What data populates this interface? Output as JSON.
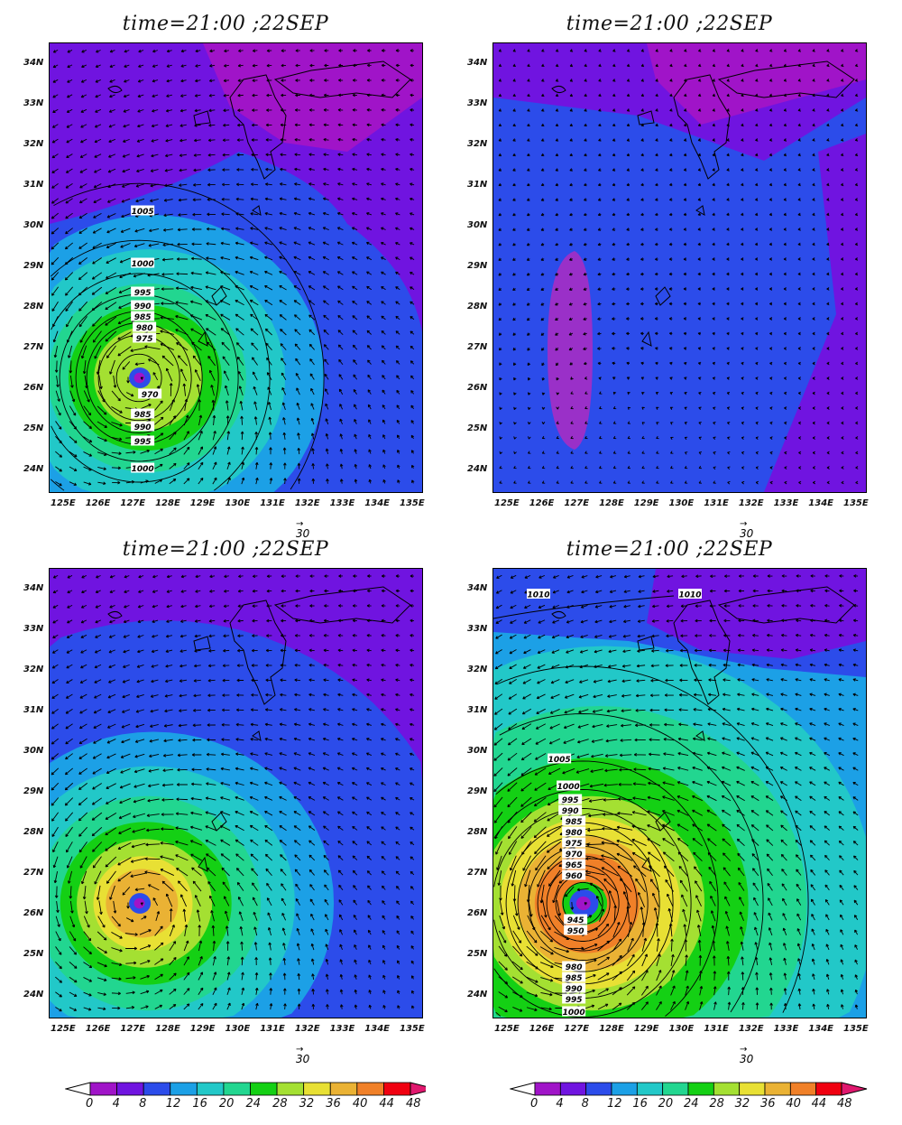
{
  "panels": [
    {
      "title": "time=21:00  ;22SEP",
      "ref_vector": "30",
      "contour_labels": [
        "1005",
        "1000",
        "995",
        "990",
        "985",
        "980",
        "975",
        "970",
        "985",
        "990",
        "995",
        "1000"
      ]
    },
    {
      "title": "time=21:00  ;22SEP",
      "ref_vector": "30",
      "contour_labels": []
    },
    {
      "title": "time=21:00  ;22SEP",
      "ref_vector": "30",
      "contour_labels": []
    },
    {
      "title": "time=21:00  ;22SEP",
      "ref_vector": "30",
      "contour_labels": [
        "1010",
        "1010",
        "1005",
        "1000",
        "995",
        "990",
        "985",
        "980",
        "975",
        "970",
        "965",
        "960",
        "945",
        "950",
        "980",
        "985",
        "990",
        "995",
        "1000"
      ]
    }
  ],
  "lat_labels": [
    "34N",
    "33N",
    "32N",
    "31N",
    "30N",
    "29N",
    "28N",
    "27N",
    "26N",
    "25N",
    "24N"
  ],
  "lon_labels": [
    "125E",
    "126E",
    "127E",
    "128E",
    "129E",
    "130E",
    "131E",
    "132E",
    "133E",
    "134E",
    "135E"
  ],
  "colorbar": {
    "labels": [
      "0",
      "4",
      "8",
      "12",
      "16",
      "20",
      "24",
      "28",
      "32",
      "36",
      "40",
      "44",
      "48"
    ],
    "colors": [
      "#ffffff",
      "#a014c8",
      "#7014e0",
      "#2c4cea",
      "#1ca0e6",
      "#22c8c8",
      "#22d690",
      "#14d014",
      "#a4e032",
      "#e8e034",
      "#eab234",
      "#f08028",
      "#f00010",
      "#e0186e"
    ]
  }
}
